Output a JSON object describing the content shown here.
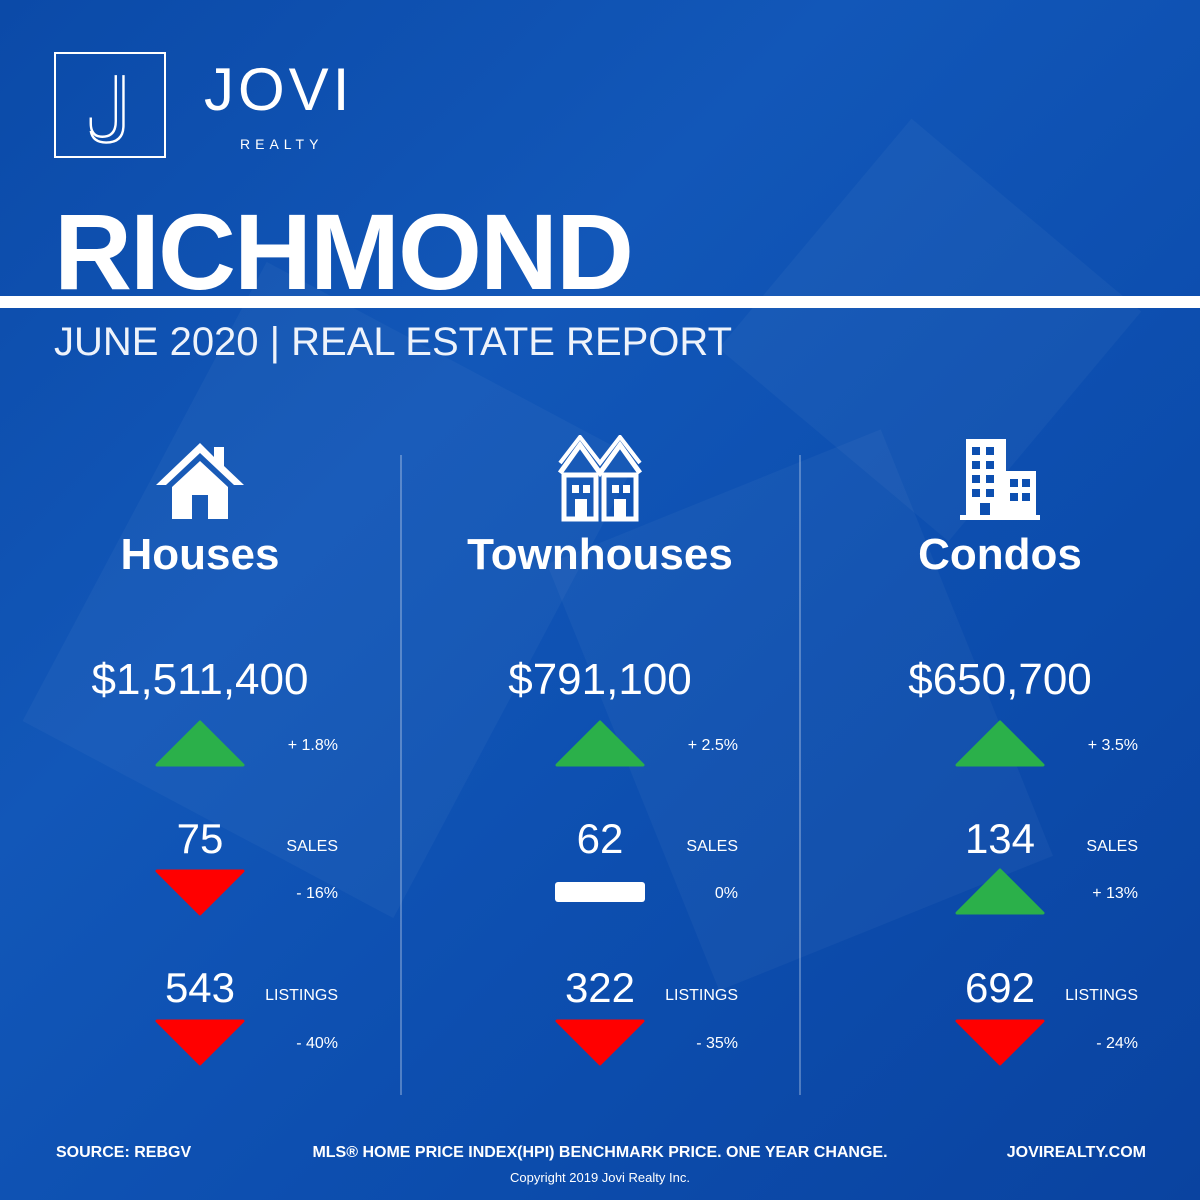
{
  "brand": {
    "name": "JOVI",
    "sub": "REALTY",
    "mark": "J"
  },
  "city": "RICHMOND",
  "subtitle": "JUNE 2020 | REAL ESTATE REPORT",
  "columns": [
    {
      "title": "Houses",
      "icon": "house-icon",
      "price": "$1,511,400",
      "price_change": "+ 1.8%",
      "price_trend": "up",
      "sales": "75",
      "sales_label": "SALES",
      "sales_change": "- 16%",
      "sales_trend": "down",
      "listings": "543",
      "listings_label": "LISTINGS",
      "listings_change": "- 40%",
      "listings_trend": "down"
    },
    {
      "title": "Townhouses",
      "icon": "townhouse-icon",
      "price": "$791,100",
      "price_change": "+ 2.5%",
      "price_trend": "up",
      "sales": "62",
      "sales_label": "SALES",
      "sales_change": "0%",
      "sales_trend": "flat",
      "listings": "322",
      "listings_label": "LISTINGS",
      "listings_change": "- 35%",
      "listings_trend": "down"
    },
    {
      "title": "Condos",
      "icon": "condo-building-icon",
      "price": "$650,700",
      "price_change": "+ 3.5%",
      "price_trend": "up",
      "sales": "134",
      "sales_label": "SALES",
      "sales_change": "+ 13%",
      "sales_trend": "up",
      "listings": "692",
      "listings_label": "LISTINGS",
      "listings_change": "- 24%",
      "listings_trend": "down"
    }
  ],
  "footer": {
    "source": "SOURCE:  REBGV",
    "note": "MLS® HOME PRICE INDEX(HPI) BENCHMARK PRICE. ONE YEAR CHANGE.",
    "website": "JOVIREALTY.COM",
    "copyright": "Copyright 2019 Jovi Realty Inc."
  },
  "colors": {
    "background": "#0d4fb0",
    "up": "#2bb04a",
    "down": "#ff0000",
    "text": "#ffffff"
  }
}
